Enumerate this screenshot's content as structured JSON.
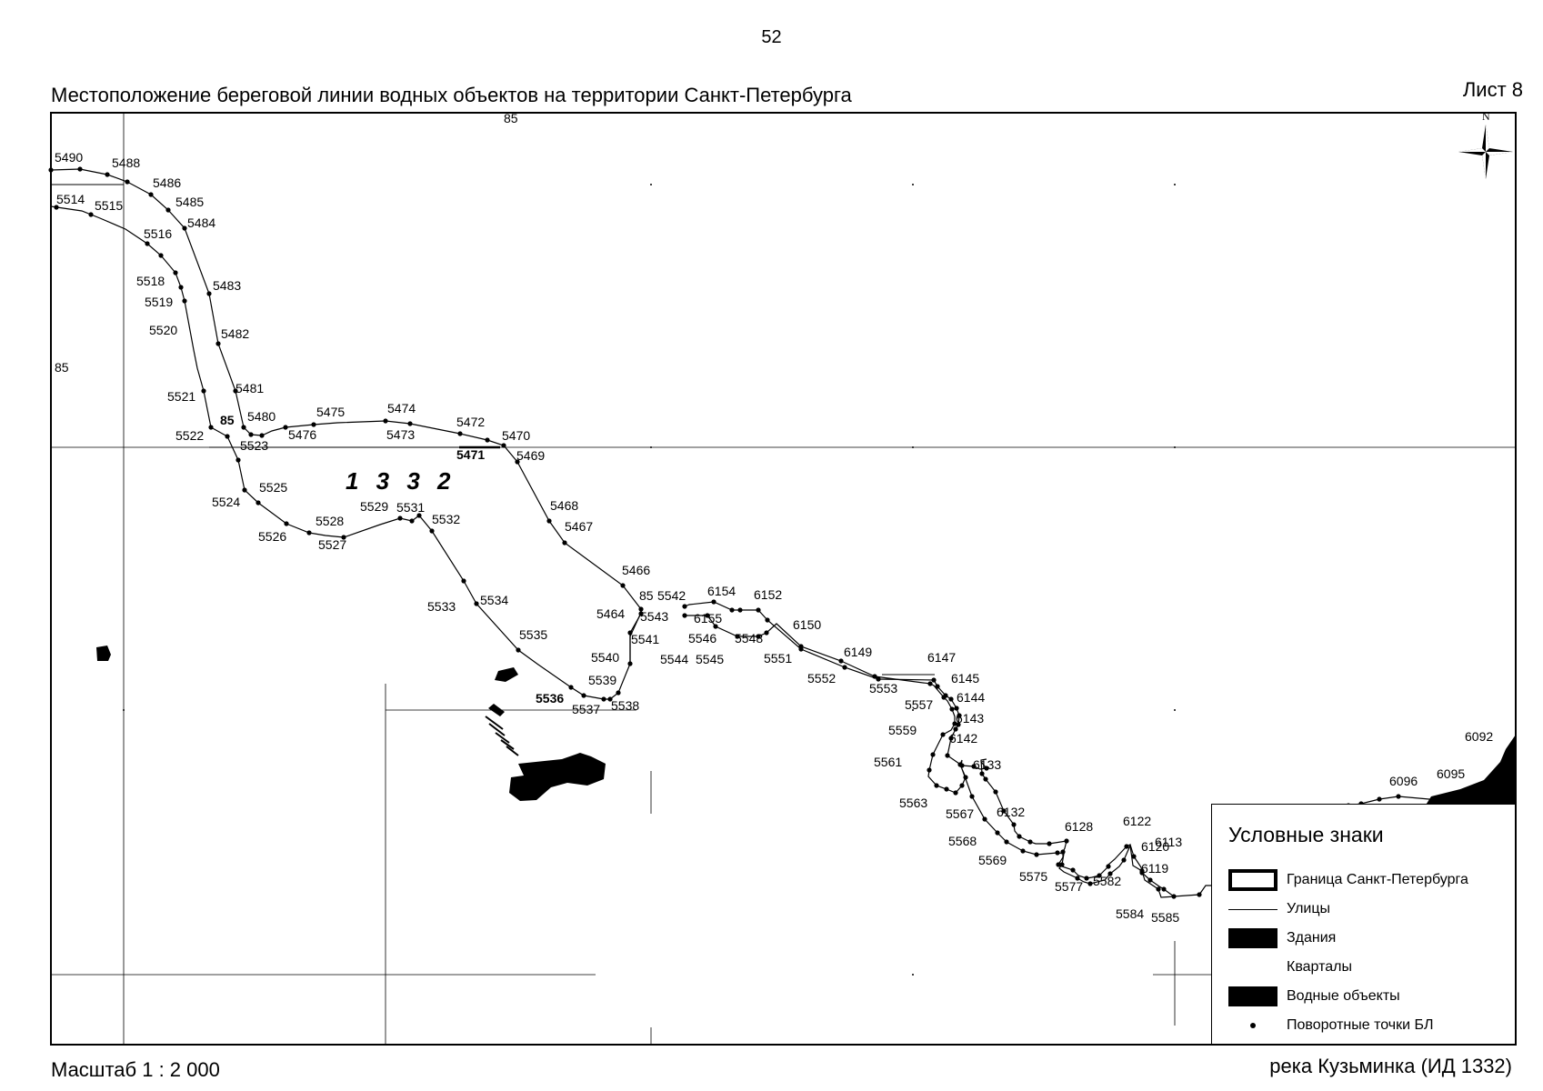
{
  "header": {
    "page_number": "52",
    "title": "Местоположение береговой линии водных объектов на территории Санкт-Петербурга",
    "sheet": "Лист 8"
  },
  "footer": {
    "scale": "Масштаб 1 : 2 000",
    "river": "река Кузьминка (ИД 1332)"
  },
  "map": {
    "object_id": "1 3 3 2",
    "north_label": "N",
    "grid_labels": [
      "85",
      "85",
      "85",
      "85"
    ],
    "point_labels": [
      "5490",
      "5488",
      "5486",
      "5485",
      "5484",
      "5483",
      "5482",
      "5481",
      "5480",
      "5475",
      "5474",
      "5472",
      "5470",
      "5469",
      "5468",
      "5467",
      "5466",
      "5464",
      "5543",
      "5542",
      "6154",
      "6152",
      "6155",
      "5546",
      "5548",
      "5544",
      "5545",
      "6150",
      "5551",
      "6149",
      "5552",
      "6147",
      "5553",
      "6145",
      "5557",
      "6144",
      "6143",
      "5559",
      "6142",
      "5561",
      "6133",
      "5563",
      "5567",
      "6132",
      "5568",
      "6128",
      "6122",
      "6120",
      "6119",
      "6113",
      "5569",
      "5575",
      "5577",
      "5582",
      "5584",
      "5585",
      "6092",
      "6096",
      "6095",
      "5514",
      "5515",
      "5516",
      "5518",
      "5519",
      "5520",
      "5521",
      "5522",
      "5523",
      "5476",
      "5473",
      "5471",
      "5525",
      "5524",
      "5526",
      "5528",
      "5527",
      "5529",
      "5531",
      "5532",
      "5533",
      "5534",
      "5535",
      "5541",
      "5540",
      "5539",
      "5536",
      "5537",
      "5538"
    ]
  },
  "legend": {
    "title": "Условные знаки",
    "items": [
      {
        "symbol": "boundary",
        "label": "Граница Санкт-Петербурга"
      },
      {
        "symbol": "street",
        "label": "Улицы"
      },
      {
        "symbol": "building",
        "label": "Здания"
      },
      {
        "symbol": "block",
        "label": "Кварталы"
      },
      {
        "symbol": "water",
        "label": "Водные объекты"
      },
      {
        "symbol": "point",
        "label": "Поворотные точки БЛ"
      }
    ]
  },
  "colors": {
    "ink": "#000000",
    "paper": "#ffffff"
  }
}
